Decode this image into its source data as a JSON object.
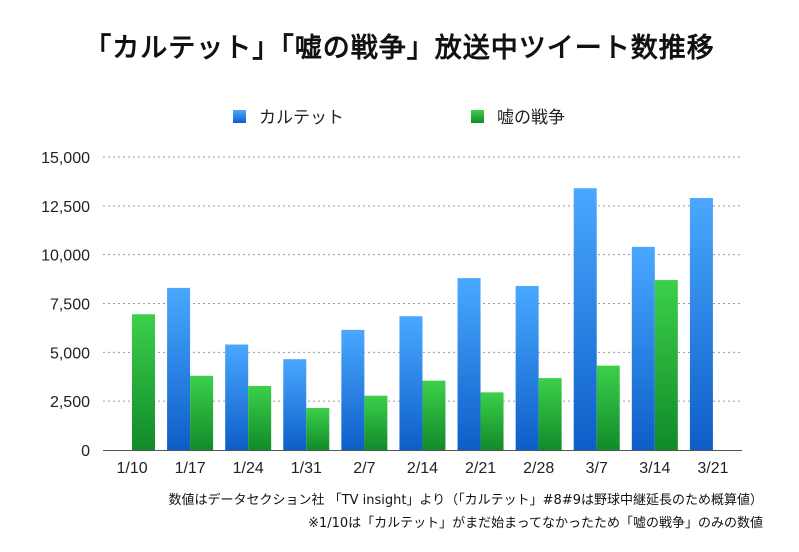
{
  "chart_data": {
    "type": "bar",
    "title": "「カルテット」「嘘の戦争」放送中ツイート数推移",
    "categories": [
      "1/10",
      "1/17",
      "1/24",
      "1/31",
      "2/7",
      "2/14",
      "2/21",
      "2/28",
      "3/7",
      "3/14",
      "3/21"
    ],
    "series": [
      {
        "name": "カルテット",
        "color": "#2a7fe0",
        "values": [
          null,
          8300,
          5400,
          4650,
          6150,
          6850,
          8800,
          8400,
          13400,
          10400,
          12900
        ]
      },
      {
        "name": "嘘の戦争",
        "color": "#22a93a",
        "values": [
          6950,
          3800,
          3280,
          2150,
          2780,
          3550,
          2950,
          3680,
          4320,
          8700,
          null
        ]
      }
    ],
    "ylim": [
      0,
      15000
    ],
    "yticks": [
      "0",
      "2,500",
      "5,000",
      "7,500",
      "10,000",
      "12,500",
      "15,000"
    ],
    "grid": true,
    "legend_position": "top"
  },
  "notes": [
    "数値はデータセクション社 「TV insight」より（「カルテット」#8#9は野球中継延長のため概算値）",
    "※1/10は「カルテット」がまだ始まってなかったため「嘘の戦争」のみの数値"
  ]
}
